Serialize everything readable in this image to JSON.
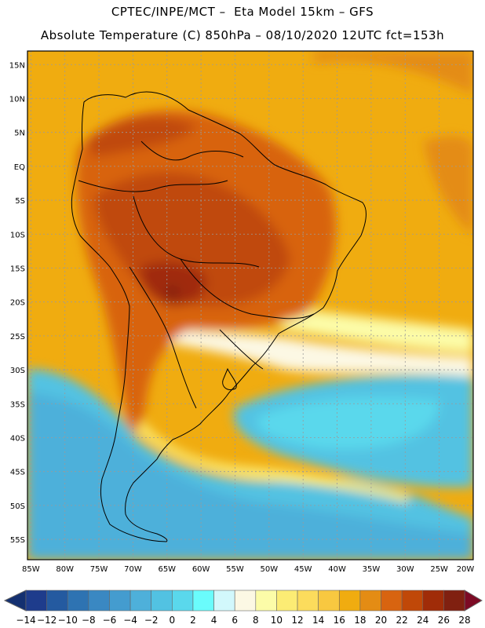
{
  "header": {
    "line1": "CPTEC/INPE/MCT –  Eta Model 15km – GFS",
    "line2": "Absolute Temperature (C) 850hPa – 08/10/2020 12UTC fct=153h"
  },
  "map": {
    "lat_labels": [
      "15N",
      "10N",
      "5N",
      "EQ",
      "5S",
      "10S",
      "15S",
      "20S",
      "25S",
      "30S",
      "35S",
      "40S",
      "45S",
      "50S",
      "55S"
    ],
    "lat_values": [
      15,
      10,
      5,
      0,
      -5,
      -10,
      -15,
      -20,
      -25,
      -30,
      -35,
      -40,
      -45,
      -50,
      -55
    ],
    "lon_labels": [
      "85W",
      "80W",
      "75W",
      "70W",
      "65W",
      "60W",
      "55W",
      "50W",
      "45W",
      "40W",
      "35W",
      "30W",
      "25W",
      "20W"
    ],
    "lon_values": [
      -85,
      -80,
      -75,
      -70,
      -65,
      -60,
      -55,
      -50,
      -45,
      -40,
      -35,
      -30,
      -25,
      -20
    ],
    "extent": {
      "lon_min": -85.5,
      "lon_max": -20,
      "lat_min": -58,
      "lat_max": 17
    },
    "background_color": "#f0ac10"
  },
  "colorbar": {
    "labels": [
      "−14",
      "−12",
      "−10",
      "−8",
      "−6",
      "−4",
      "−2",
      "0",
      "2",
      "4",
      "6",
      "8",
      "10",
      "12",
      "14",
      "16",
      "18",
      "20",
      "22",
      "24",
      "26",
      "28"
    ],
    "colors": [
      "#1e3c8c",
      "#245aa0",
      "#2e73b2",
      "#3a88c2",
      "#449ccf",
      "#4eb0da",
      "#52c2e2",
      "#5ad8ec",
      "#6afcfc",
      "#d2f8fc",
      "#fcf8e4",
      "#fcfca8",
      "#fcec74",
      "#fcdc5c",
      "#f8c840",
      "#f0ac10",
      "#e48c14",
      "#d86410",
      "#c04808",
      "#a02c08",
      "#802010"
    ],
    "min_color": "#143070",
    "max_color": "#7c0a24"
  }
}
